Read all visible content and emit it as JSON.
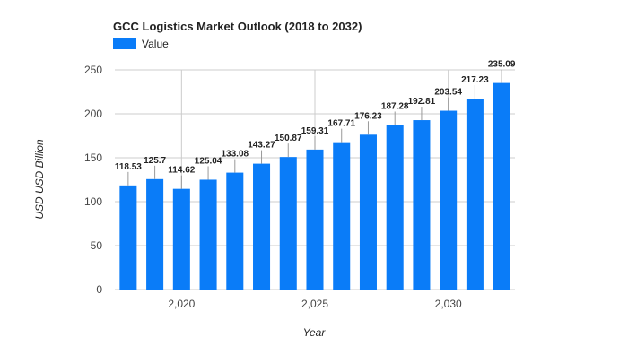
{
  "colors": {
    "bar": "#0a7cf8",
    "grid": "#cccccc",
    "background": "#ffffff"
  },
  "chart_data": {
    "type": "bar",
    "title": "GCC Logistics Market Outlook (2018 to 2032)",
    "xlabel": "Year",
    "ylabel": "USD USD Billion",
    "legend": {
      "position": "top-left",
      "entries": [
        "Value"
      ]
    },
    "grid": true,
    "ylim": [
      0,
      250
    ],
    "yticks": [
      0,
      50,
      100,
      150,
      200,
      250
    ],
    "xticks": [
      2020,
      2025,
      2030
    ],
    "xtick_labels": [
      "2,020",
      "2,025",
      "2,030"
    ],
    "x": [
      2018,
      2019,
      2020,
      2021,
      2022,
      2023,
      2024,
      2025,
      2026,
      2027,
      2028,
      2029,
      2030,
      2031,
      2032
    ],
    "series": [
      {
        "name": "Value",
        "values": [
          118.53,
          125.7,
          114.62,
          125.04,
          133.08,
          143.27,
          150.87,
          159.31,
          167.71,
          176.23,
          187.28,
          192.81,
          203.54,
          217.23,
          235.09
        ],
        "labels": [
          "118.53",
          "125.7",
          "114.62",
          "125.04",
          "133.08",
          "143.27",
          "150.87",
          "159.31",
          "167.71",
          "176.23",
          "187.28",
          "192.81",
          "203.54",
          "217.23",
          "235.09"
        ]
      }
    ]
  }
}
